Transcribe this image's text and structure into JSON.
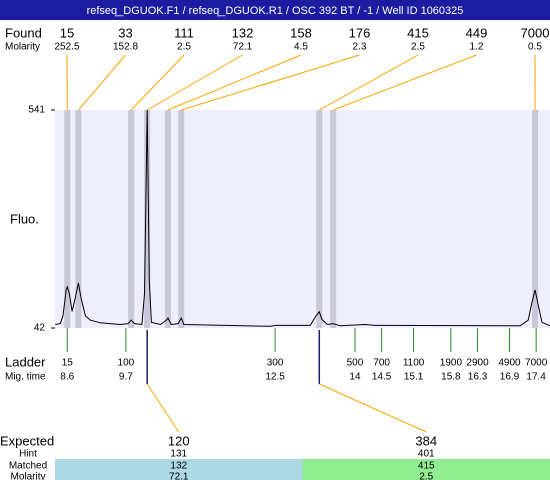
{
  "chart_data": {
    "type": "electropherogram",
    "title": "refseq_DGUOK.F1 / refseq_DGUOK.R1 / OSC 392 BT / -1 / Well ID 1060325",
    "y_label": "Fluo.",
    "ylim": [
      42,
      541
    ],
    "yticks": [
      42,
      541
    ],
    "xlim": [
      8.37,
      17.66
    ],
    "plot_color": "#eeeeff",
    "band_color": "#c8c8da",
    "link_color": "#ffa500",
    "ladder_color": "#228b22",
    "found": {
      "label": "Found",
      "molarity_label": "Molarity",
      "sizes": [
        15,
        33,
        111,
        132,
        158,
        176,
        415,
        449,
        7000
      ],
      "molarity": [
        252.5,
        152.8,
        2.5,
        72.1,
        4.5,
        2.3,
        2.5,
        1.2,
        0.5
      ],
      "x": [
        8.6,
        8.81,
        9.8,
        10.1,
        10.49,
        10.74,
        13.33,
        13.59,
        17.38
      ]
    },
    "ladder": {
      "label": "Ladder",
      "time_label": "Mig. time",
      "sizes": [
        15,
        100,
        300,
        500,
        700,
        1100,
        1900,
        2900,
        4900,
        7000
      ],
      "x": [
        8.6,
        9.7,
        12.5,
        14,
        14.5,
        15.1,
        15.8,
        16.3,
        16.9,
        17.4
      ]
    },
    "trace": {
      "color": "#000000",
      "x": [
        8.375,
        8.47,
        8.52,
        8.58,
        8.6,
        8.64,
        8.69,
        8.75,
        8.81,
        8.86,
        8.94,
        9.03,
        9.22,
        9.59,
        9.74,
        9.8,
        9.86,
        10.0,
        10.05,
        10.1,
        10.14,
        10.18,
        10.35,
        10.46,
        10.49,
        10.55,
        10.68,
        10.74,
        10.79,
        12.41,
        12.52,
        13.16,
        13.27,
        13.33,
        13.38,
        13.48,
        13.59,
        13.72,
        14.19,
        14.38,
        17.1,
        17.25,
        17.32,
        17.38,
        17.43,
        17.51,
        17.66
      ],
      "values": [
        50,
        52,
        70,
        130,
        136,
        120,
        80,
        110,
        145,
        110,
        70,
        60,
        54,
        50,
        52,
        60,
        52,
        50,
        120,
        541,
        150,
        55,
        50,
        60,
        65,
        50,
        52,
        65,
        50,
        46,
        48,
        48,
        70,
        79,
        62,
        50,
        52,
        47,
        50,
        48,
        47,
        60,
        100,
        129,
        100,
        55,
        47
      ]
    },
    "expected": {
      "label": "Expected",
      "hint_label": "Hint",
      "matched_label": "Matched",
      "molarity_label": "Molarity",
      "sizes": [
        120,
        384
      ],
      "hint": [
        131,
        401
      ],
      "matched": [
        132,
        415
      ],
      "molarity": [
        72.1,
        2.5
      ],
      "colors": [
        "#add8e6",
        "#90ee90"
      ]
    }
  }
}
